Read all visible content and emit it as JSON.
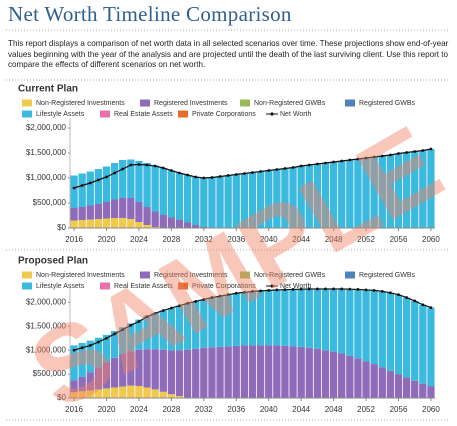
{
  "header": {
    "title": "Net Worth Timeline Comparison",
    "description": "This report displays a comparison of net worth data in all selected scenarios over time. These projections show end-of-year values beginning with the year of the analysis and are projected until the death of the last surviving client. Use this report to compare the effects of different scenarios on net worth."
  },
  "watermark": "SAMPLE",
  "chart_data": [
    {
      "type": "bar",
      "stacked": true,
      "title": "Current Plan",
      "x": [
        2016,
        2017,
        2018,
        2019,
        2020,
        2021,
        2022,
        2023,
        2024,
        2025,
        2026,
        2027,
        2028,
        2029,
        2030,
        2031,
        2032,
        2033,
        2034,
        2035,
        2036,
        2037,
        2038,
        2039,
        2040,
        2041,
        2042,
        2043,
        2044,
        2045,
        2046,
        2047,
        2048,
        2049,
        2050,
        2051,
        2052,
        2053,
        2054,
        2055,
        2056,
        2057,
        2058,
        2059,
        2060
      ],
      "xlim": [
        2015.5,
        2060.5
      ],
      "xticks": [
        2016,
        2020,
        2024,
        2028,
        2032,
        2036,
        2040,
        2044,
        2048,
        2052,
        2056,
        2060
      ],
      "ylim": [
        0,
        2200000
      ],
      "yticks": [
        {
          "value": 0,
          "label": "$0"
        },
        {
          "value": 500000,
          "label": "$500,000"
        },
        {
          "value": 1000000,
          "label": "$1,000,000"
        },
        {
          "value": 1500000,
          "label": "$1,500,000"
        },
        {
          "value": 2000000,
          "label": "$2,000,000"
        }
      ],
      "series": [
        {
          "name": "Non-Registered Investments",
          "color": "#f2c94f",
          "values": [
            150000,
            160000,
            170000,
            180000,
            190000,
            200000,
            200000,
            180000,
            120000,
            60000,
            20000,
            0,
            0,
            0,
            0,
            0,
            0,
            0,
            0,
            0,
            0,
            0,
            0,
            0,
            0,
            0,
            0,
            0,
            0,
            0,
            0,
            0,
            0,
            0,
            0,
            0,
            0,
            0,
            0,
            0,
            0,
            0,
            0,
            0,
            0
          ]
        },
        {
          "name": "Registered Investments",
          "color": "#8e6cb9",
          "values": [
            250000,
            260000,
            280000,
            300000,
            330000,
            370000,
            400000,
            420000,
            400000,
            360000,
            310000,
            260000,
            210000,
            160000,
            110000,
            60000,
            20000,
            0,
            0,
            0,
            0,
            0,
            0,
            0,
            0,
            0,
            0,
            0,
            0,
            0,
            0,
            0,
            0,
            0,
            0,
            0,
            0,
            0,
            0,
            0,
            0,
            0,
            0,
            0,
            0
          ]
        },
        {
          "name": "Non-Registered GWBs",
          "color": "#9bbb59",
          "values": [
            0,
            0,
            0,
            0,
            0,
            0,
            0,
            0,
            0,
            0,
            0,
            0,
            0,
            0,
            0,
            0,
            0,
            0,
            0,
            0,
            0,
            0,
            0,
            0,
            0,
            0,
            0,
            0,
            0,
            0,
            0,
            0,
            0,
            0,
            0,
            0,
            0,
            0,
            0,
            0,
            0,
            0,
            0,
            0,
            0
          ]
        },
        {
          "name": "Registered GWBs",
          "color": "#4f81bd",
          "values": [
            0,
            0,
            0,
            0,
            0,
            0,
            0,
            0,
            0,
            0,
            0,
            0,
            0,
            0,
            0,
            0,
            0,
            0,
            0,
            0,
            0,
            0,
            0,
            0,
            0,
            0,
            0,
            0,
            0,
            0,
            0,
            0,
            0,
            0,
            0,
            0,
            0,
            0,
            0,
            0,
            0,
            0,
            0,
            0,
            0
          ]
        },
        {
          "name": "Lifestyle Assets",
          "color": "#3cb9de",
          "values": [
            650000,
            670000,
            680000,
            700000,
            710000,
            730000,
            760000,
            770000,
            820000,
            880000,
            920000,
            940000,
            940000,
            940000,
            950000,
            960000,
            980000,
            1010000,
            1030000,
            1050000,
            1070000,
            1090000,
            1110000,
            1130000,
            1150000,
            1170000,
            1190000,
            1210000,
            1240000,
            1260000,
            1280000,
            1300000,
            1320000,
            1340000,
            1360000,
            1380000,
            1400000,
            1420000,
            1440000,
            1460000,
            1490000,
            1510000,
            1530000,
            1550000,
            1580000
          ]
        },
        {
          "name": "Real Estate Assets",
          "color": "#e774a8",
          "values": [
            0,
            0,
            0,
            0,
            0,
            0,
            0,
            0,
            0,
            0,
            0,
            0,
            0,
            0,
            0,
            0,
            0,
            0,
            0,
            0,
            0,
            0,
            0,
            0,
            0,
            0,
            0,
            0,
            0,
            0,
            0,
            0,
            0,
            0,
            0,
            0,
            0,
            0,
            0,
            0,
            0,
            0,
            0,
            0,
            0
          ]
        },
        {
          "name": "Private Corporations",
          "color": "#e46c2f",
          "values": [
            0,
            0,
            0,
            0,
            0,
            0,
            0,
            0,
            0,
            0,
            0,
            0,
            0,
            0,
            0,
            0,
            0,
            0,
            0,
            0,
            0,
            0,
            0,
            0,
            0,
            0,
            0,
            0,
            0,
            0,
            0,
            0,
            0,
            0,
            0,
            0,
            0,
            0,
            0,
            0,
            0,
            0,
            0,
            0,
            0
          ]
        },
        {
          "name": "Net Worth",
          "color": "#111111",
          "type": "line",
          "values": [
            800000,
            850000,
            900000,
            960000,
            1020000,
            1100000,
            1180000,
            1260000,
            1270000,
            1260000,
            1240000,
            1200000,
            1150000,
            1100000,
            1060000,
            1020000,
            1000000,
            1010000,
            1030000,
            1050000,
            1070000,
            1090000,
            1110000,
            1130000,
            1150000,
            1170000,
            1190000,
            1210000,
            1240000,
            1260000,
            1280000,
            1300000,
            1320000,
            1340000,
            1360000,
            1380000,
            1400000,
            1420000,
            1440000,
            1460000,
            1490000,
            1510000,
            1530000,
            1550000,
            1580000
          ]
        }
      ]
    },
    {
      "type": "bar",
      "stacked": true,
      "title": "Proposed Plan",
      "x": [
        2016,
        2017,
        2018,
        2019,
        2020,
        2021,
        2022,
        2023,
        2024,
        2025,
        2026,
        2027,
        2028,
        2029,
        2030,
        2031,
        2032,
        2033,
        2034,
        2035,
        2036,
        2037,
        2038,
        2039,
        2040,
        2041,
        2042,
        2043,
        2044,
        2045,
        2046,
        2047,
        2048,
        2049,
        2050,
        2051,
        2052,
        2053,
        2054,
        2055,
        2056,
        2057,
        2058,
        2059,
        2060
      ],
      "xlim": [
        2015.5,
        2060.5
      ],
      "xticks": [
        2016,
        2020,
        2024,
        2028,
        2032,
        2036,
        2040,
        2044,
        2048,
        2052,
        2056,
        2060
      ],
      "ylim": [
        0,
        2300000
      ],
      "yticks": [
        {
          "value": 0,
          "label": "$0"
        },
        {
          "value": 500000,
          "label": "$500,000"
        },
        {
          "value": 1000000,
          "label": "$1,000,000"
        },
        {
          "value": 1500000,
          "label": "$1,500,000"
        },
        {
          "value": 2000000,
          "label": "$2,000,000"
        }
      ],
      "series": [
        {
          "name": "Non-Registered Investments",
          "color": "#f2c94f",
          "values": [
            120000,
            140000,
            160000,
            180000,
            200000,
            220000,
            240000,
            260000,
            250000,
            220000,
            180000,
            130000,
            80000,
            40000,
            10000,
            0,
            0,
            0,
            0,
            0,
            0,
            0,
            0,
            0,
            0,
            0,
            0,
            0,
            0,
            0,
            0,
            0,
            0,
            0,
            0,
            0,
            0,
            0,
            0,
            0,
            0,
            0,
            0,
            0,
            0
          ]
        },
        {
          "name": "Registered Investments",
          "color": "#8e6cb9",
          "values": [
            250000,
            300000,
            380000,
            460000,
            550000,
            620000,
            680000,
            720000,
            760000,
            800000,
            840000,
            880000,
            920000,
            960000,
            1000000,
            1030000,
            1050000,
            1060000,
            1070000,
            1080000,
            1090000,
            1100000,
            1100000,
            1100000,
            1100000,
            1100000,
            1090000,
            1080000,
            1070000,
            1050000,
            1030000,
            1000000,
            970000,
            930000,
            880000,
            830000,
            770000,
            710000,
            640000,
            570000,
            500000,
            430000,
            360000,
            300000,
            250000
          ]
        },
        {
          "name": "Non-Registered GWBs",
          "color": "#9bbb59",
          "values": [
            0,
            0,
            0,
            0,
            0,
            0,
            0,
            0,
            0,
            0,
            0,
            0,
            0,
            0,
            0,
            0,
            0,
            0,
            0,
            0,
            0,
            0,
            0,
            0,
            0,
            0,
            0,
            0,
            0,
            0,
            0,
            0,
            0,
            0,
            0,
            0,
            0,
            0,
            0,
            0,
            0,
            0,
            0,
            0,
            0
          ]
        },
        {
          "name": "Registered GWBs",
          "color": "#4f81bd",
          "values": [
            0,
            0,
            0,
            0,
            0,
            0,
            0,
            0,
            0,
            0,
            0,
            0,
            0,
            0,
            0,
            0,
            0,
            0,
            0,
            0,
            0,
            0,
            0,
            0,
            0,
            0,
            0,
            0,
            0,
            0,
            0,
            0,
            0,
            0,
            0,
            0,
            0,
            0,
            0,
            0,
            0,
            0,
            0,
            0,
            0
          ]
        },
        {
          "name": "Lifestyle Assets",
          "color": "#3cb9de",
          "values": [
            730000,
            710000,
            660000,
            620000,
            570000,
            560000,
            560000,
            580000,
            630000,
            700000,
            760000,
            820000,
            880000,
            930000,
            970000,
            990000,
            1010000,
            1040000,
            1060000,
            1080000,
            1100000,
            1110000,
            1130000,
            1140000,
            1150000,
            1160000,
            1175000,
            1190000,
            1205000,
            1230000,
            1250000,
            1280000,
            1310000,
            1350000,
            1395000,
            1440000,
            1490000,
            1540000,
            1590000,
            1630000,
            1660000,
            1670000,
            1670000,
            1650000,
            1640000
          ]
        },
        {
          "name": "Real Estate Assets",
          "color": "#e774a8",
          "values": [
            0,
            0,
            0,
            0,
            0,
            0,
            0,
            0,
            0,
            0,
            0,
            0,
            0,
            0,
            0,
            0,
            0,
            0,
            0,
            0,
            0,
            0,
            0,
            0,
            0,
            0,
            0,
            0,
            0,
            0,
            0,
            0,
            0,
            0,
            0,
            0,
            0,
            0,
            0,
            0,
            0,
            0,
            0,
            0,
            0
          ]
        },
        {
          "name": "Private Corporations",
          "color": "#e46c2f",
          "values": [
            0,
            0,
            0,
            0,
            0,
            0,
            0,
            0,
            0,
            0,
            0,
            0,
            0,
            0,
            0,
            0,
            0,
            0,
            0,
            0,
            0,
            0,
            0,
            0,
            0,
            0,
            0,
            0,
            0,
            0,
            0,
            0,
            0,
            0,
            0,
            0,
            0,
            0,
            0,
            0,
            0,
            0,
            0,
            0,
            0
          ]
        },
        {
          "name": "Net Worth",
          "color": "#111111",
          "type": "line",
          "values": [
            1000000,
            1050000,
            1100000,
            1170000,
            1250000,
            1340000,
            1430000,
            1520000,
            1600000,
            1700000,
            1770000,
            1830000,
            1880000,
            1930000,
            1980000,
            2020000,
            2060000,
            2100000,
            2130000,
            2160000,
            2190000,
            2210000,
            2230000,
            2240000,
            2250000,
            2260000,
            2265000,
            2270000,
            2275000,
            2280000,
            2280000,
            2280000,
            2280000,
            2280000,
            2275000,
            2270000,
            2260000,
            2250000,
            2230000,
            2200000,
            2160000,
            2100000,
            2030000,
            1950000,
            1890000
          ]
        }
      ]
    }
  ]
}
